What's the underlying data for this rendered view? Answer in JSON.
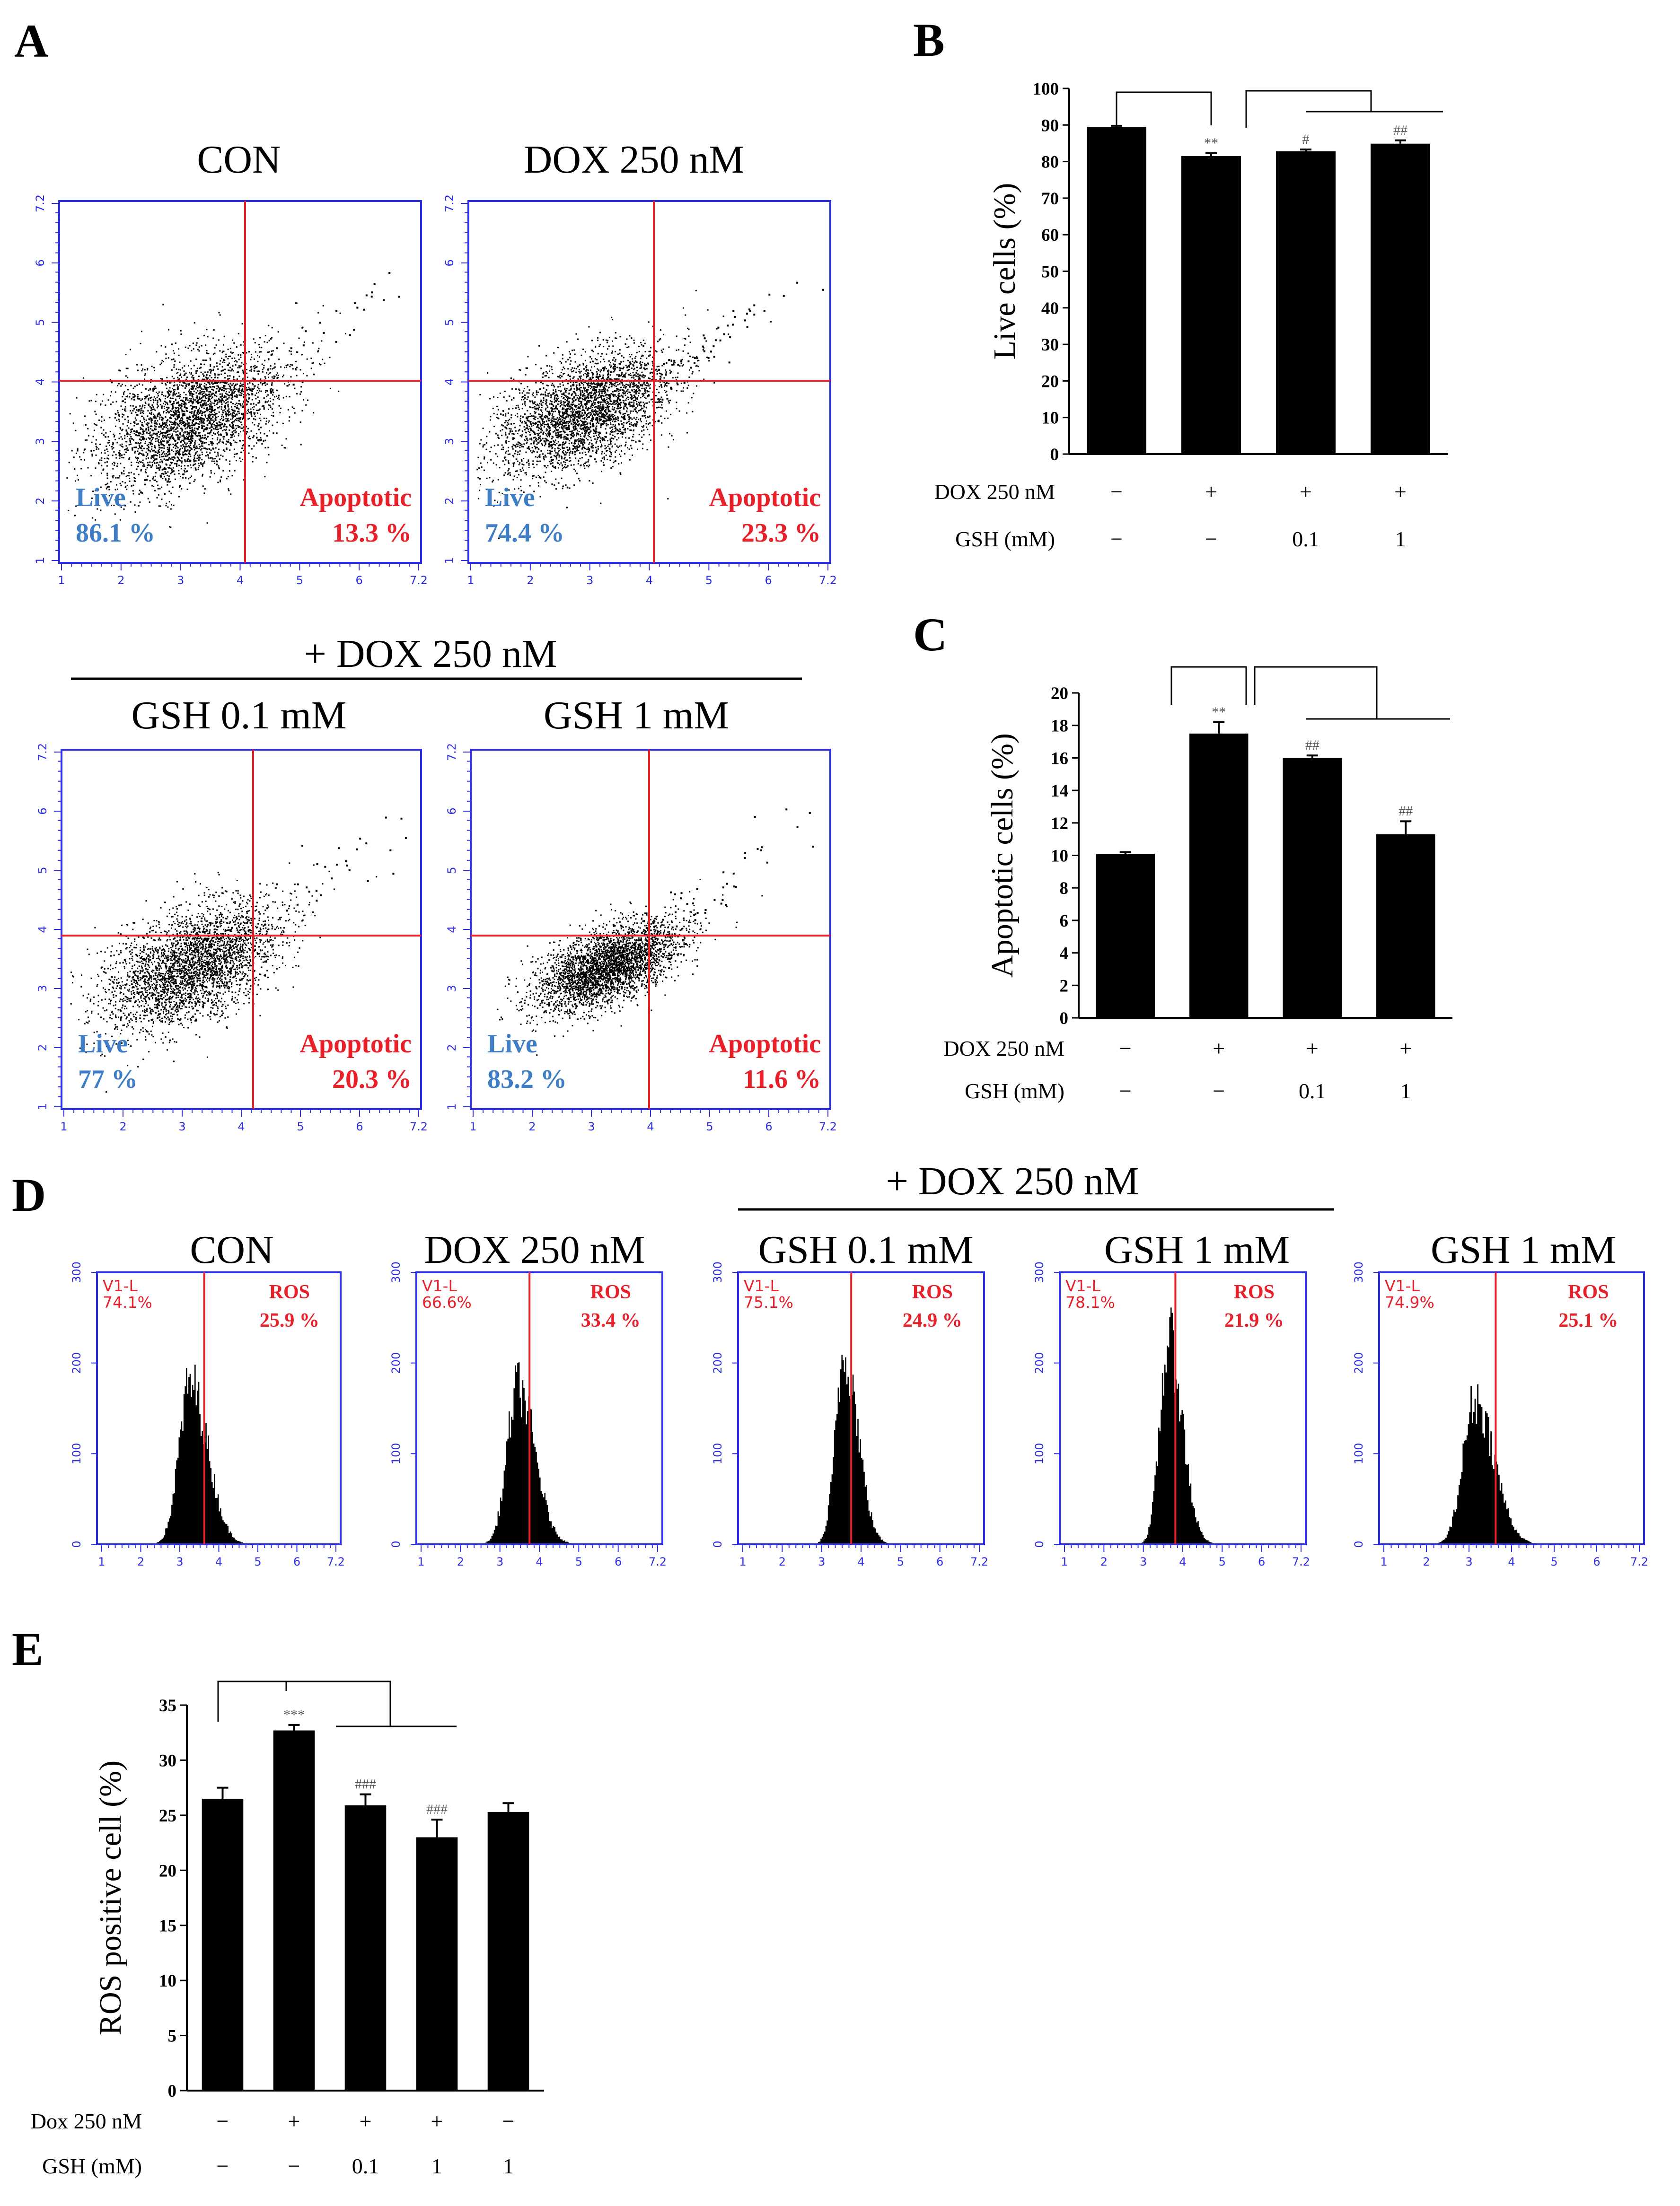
{
  "colors": {
    "bar": "#000000",
    "plot_frame": "#2d2de6",
    "gate": "#e8202a",
    "live_text": "#3f7ec4",
    "apoptotic_text": "#e8202a"
  },
  "panels": {
    "A": {
      "letter": "A",
      "group_title": "+ DOX 250 nM",
      "axis_ticks": [
        "1",
        "2",
        "3",
        "4",
        "5",
        "6",
        "7.2"
      ],
      "plots": [
        {
          "title": "CON",
          "live_label": "Live",
          "live_value": "86.1 %",
          "apoptotic_label": "Apoptotic",
          "apoptotic_value": "13.3 %"
        },
        {
          "title": "DOX 250 nM",
          "live_label": "Live",
          "live_value": "74.4 %",
          "apoptotic_label": "Apoptotic",
          "apoptotic_value": "23.3 %"
        },
        {
          "title": "GSH 0.1 mM",
          "live_label": "Live",
          "live_value": "77 %",
          "apoptotic_label": "Apoptotic",
          "apoptotic_value": "20.3 %"
        },
        {
          "title": "GSH 1 mM",
          "live_label": "Live",
          "live_value": "83.2 %",
          "apoptotic_label": "Apoptotic",
          "apoptotic_value": "11.6 %"
        }
      ]
    },
    "B": {
      "letter": "B",
      "treatment_rows": [
        {
          "label": "DOX 250 nM",
          "values": [
            "−",
            "+",
            "+",
            "+"
          ]
        },
        {
          "label": "GSH (mM)",
          "values": [
            "−",
            "−",
            "0.1",
            "1"
          ]
        }
      ]
    },
    "C": {
      "letter": "C",
      "treatment_rows": [
        {
          "label": "DOX 250 nM",
          "values": [
            "−",
            "+",
            "+",
            "+"
          ]
        },
        {
          "label": "GSH (mM)",
          "values": [
            "−",
            "−",
            "0.1",
            "1"
          ]
        }
      ]
    },
    "D": {
      "letter": "D",
      "group_title": "+ DOX 250 nM",
      "y_ticks": [
        "0",
        "100",
        "200",
        "300"
      ],
      "x_ticks": [
        "1",
        "2",
        "3",
        "4",
        "5",
        "6",
        "7.2"
      ],
      "histograms": [
        {
          "title": "CON",
          "v1_label": "V1-L",
          "v1_value": "74.1%",
          "ros_label": "ROS",
          "ros_value": "25.9 %"
        },
        {
          "title": "DOX 250 nM",
          "v1_label": "V1-L",
          "v1_value": "66.6%",
          "ros_label": "ROS",
          "ros_value": "33.4 %"
        },
        {
          "title": "GSH 0.1 mM",
          "v1_label": "V1-L",
          "v1_value": "75.1%",
          "ros_label": "ROS",
          "ros_value": "24.9 %"
        },
        {
          "title": "GSH 1 mM",
          "v1_label": "V1-L",
          "v1_value": "78.1%",
          "ros_label": "ROS",
          "ros_value": "21.9 %"
        },
        {
          "title": "GSH 1 mM",
          "v1_label": "V1-L",
          "v1_value": "74.9%",
          "ros_label": "ROS",
          "ros_value": "25.1 %"
        }
      ]
    },
    "E": {
      "letter": "E",
      "treatment_rows": [
        {
          "label": "Dox 250 nM",
          "values": [
            "−",
            "+",
            "+",
            "+",
            "−"
          ]
        },
        {
          "label": "GSH (mM)",
          "values": [
            "−",
            "−",
            "0.1",
            "1",
            "1"
          ]
        }
      ]
    }
  },
  "chart_data": [
    {
      "id": "B",
      "type": "bar",
      "title": "",
      "xlabel": "",
      "ylabel": "Live cells (%)",
      "ylim": [
        0,
        100
      ],
      "yticks": [
        0,
        10,
        20,
        30,
        40,
        50,
        60,
        70,
        80,
        90,
        100
      ],
      "categories": [
        "CON",
        "DOX 250 nM",
        "DOX + GSH 0.1 mM",
        "DOX + GSH 1 mM"
      ],
      "values": [
        89.5,
        81.5,
        82.8,
        84.9
      ],
      "errors": [
        0.3,
        0.8,
        0.5,
        0.9
      ],
      "significance": [
        "",
        "**",
        "#",
        "##"
      ]
    },
    {
      "id": "C",
      "type": "bar",
      "title": "",
      "xlabel": "",
      "ylabel": "Apoptotic cells (%)",
      "ylim": [
        0,
        20
      ],
      "yticks": [
        0,
        2,
        4,
        6,
        8,
        10,
        12,
        14,
        16,
        18,
        20
      ],
      "categories": [
        "CON",
        "DOX 250 nM",
        "DOX + GSH 0.1 mM",
        "DOX + GSH 1 mM"
      ],
      "values": [
        10.1,
        17.5,
        16.0,
        11.3
      ],
      "errors": [
        0.1,
        0.7,
        0.15,
        0.8
      ],
      "significance": [
        "",
        "**",
        "##",
        "##"
      ]
    },
    {
      "id": "E",
      "type": "bar",
      "title": "",
      "xlabel": "",
      "ylabel": "ROS positive cell (%)",
      "ylim": [
        0,
        35
      ],
      "yticks": [
        0,
        5,
        10,
        15,
        20,
        25,
        30,
        35
      ],
      "categories": [
        "CON",
        "DOX 250 nM",
        "DOX + GSH 0.1 mM",
        "DOX + GSH 1 mM",
        "GSH 1 mM"
      ],
      "values": [
        26.5,
        32.7,
        25.9,
        23.0,
        25.3
      ],
      "errors": [
        1.0,
        0.5,
        1.0,
        1.6,
        0.8
      ],
      "significance": [
        "",
        "***",
        "###",
        "###",
        ""
      ]
    }
  ]
}
